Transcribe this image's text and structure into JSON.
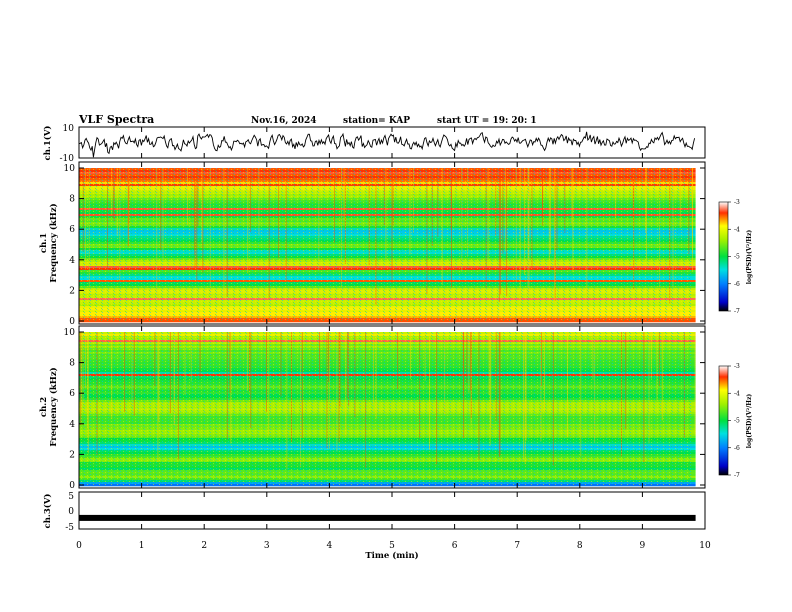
{
  "header": {
    "title": "VLF Spectra",
    "date": "Nov.16, 2024",
    "station": "station= KAP",
    "start": "start  UT =   19: 20: 1"
  },
  "colors": {
    "spec_low": "#1a3cff",
    "spec_mid": "#22e07a",
    "spec_high": "#ff2a00",
    "trace": "#000000"
  },
  "colorbar": {
    "label": "log(PSD)(V²/Hz)",
    "ticks": [
      "-3",
      "-4",
      "-5",
      "-6",
      "-7"
    ]
  },
  "chart_data": [
    {
      "type": "line",
      "name": "ch1-waveform",
      "ylabel": "ch.1(V)",
      "ylim": [
        -10,
        10
      ],
      "yticks": [
        "10",
        "-10"
      ],
      "xlim": [
        0,
        10
      ]
    },
    {
      "type": "heatmap",
      "name": "ch1-spectrogram",
      "ylabel": "ch.1 Frequency (kHz)",
      "ylabel_lines": [
        "ch.1",
        "Frequency (kHz)"
      ],
      "ylim": [
        0,
        10
      ],
      "yticks": [
        "0",
        "2",
        "4",
        "6",
        "8",
        "10"
      ],
      "xlim": [
        0,
        9.85
      ],
      "zlim": [
        -7,
        -3
      ],
      "bands_khz": [
        {
          "f": 0.2,
          "z": -3.6
        },
        {
          "f": 0.5,
          "z": -4.0
        },
        {
          "f": 1.0,
          "z": -4.2
        },
        {
          "f": 1.5,
          "z": -4.5
        },
        {
          "f": 2.0,
          "z": -4.0
        },
        {
          "f": 2.8,
          "z": -5.9
        },
        {
          "f": 3.3,
          "z": -4.8
        },
        {
          "f": 3.8,
          "z": -4.3
        },
        {
          "f": 4.2,
          "z": -4.9
        },
        {
          "f": 4.6,
          "z": -5.7
        },
        {
          "f": 5.0,
          "z": -4.6
        },
        {
          "f": 5.4,
          "z": -5.3
        },
        {
          "f": 5.9,
          "z": -6.0
        },
        {
          "f": 6.4,
          "z": -4.5
        },
        {
          "f": 7.0,
          "z": -5.2
        },
        {
          "f": 7.6,
          "z": -5.0
        },
        {
          "f": 8.2,
          "z": -4.6
        },
        {
          "f": 8.8,
          "z": -4.1
        },
        {
          "f": 9.4,
          "z": -3.6
        },
        {
          "f": 9.9,
          "z": -3.4
        }
      ]
    },
    {
      "type": "heatmap",
      "name": "ch2-spectrogram",
      "ylabel": "ch.2 Frequency (kHz)",
      "ylabel_lines": [
        "ch.2",
        "Frequency (kHz)"
      ],
      "ylim": [
        0,
        10
      ],
      "yticks": [
        "0",
        "2",
        "4",
        "6",
        "8",
        "10"
      ],
      "xlim": [
        0,
        9.85
      ],
      "zlim": [
        -7,
        -3
      ],
      "bands_khz": [
        {
          "f": 0.1,
          "z": -6.5
        },
        {
          "f": 0.5,
          "z": -4.5
        },
        {
          "f": 1.2,
          "z": -5.2
        },
        {
          "f": 1.8,
          "z": -4.6
        },
        {
          "f": 2.5,
          "z": -5.8
        },
        {
          "f": 3.0,
          "z": -5.1
        },
        {
          "f": 3.6,
          "z": -4.4
        },
        {
          "f": 4.2,
          "z": -5.0
        },
        {
          "f": 4.8,
          "z": -4.5
        },
        {
          "f": 5.3,
          "z": -4.3
        },
        {
          "f": 5.8,
          "z": -5.2
        },
        {
          "f": 6.5,
          "z": -4.8
        },
        {
          "f": 7.2,
          "z": -5.5
        },
        {
          "f": 7.8,
          "z": -5.1
        },
        {
          "f": 8.5,
          "z": -4.9
        },
        {
          "f": 9.2,
          "z": -4.6
        },
        {
          "f": 9.9,
          "z": -4.2
        }
      ]
    },
    {
      "type": "line",
      "name": "ch3-waveform",
      "ylabel": "ch.3(V)",
      "ylim": [
        -5,
        5
      ],
      "yticks": [
        "5",
        "0",
        "-5"
      ],
      "baseline": -2,
      "xlim": [
        0,
        9.85
      ]
    }
  ],
  "xaxis": {
    "label": "Time (min)",
    "ticks": [
      "0",
      "1",
      "2",
      "3",
      "4",
      "5",
      "6",
      "7",
      "8",
      "9",
      "10"
    ],
    "range": [
      0,
      10
    ]
  }
}
